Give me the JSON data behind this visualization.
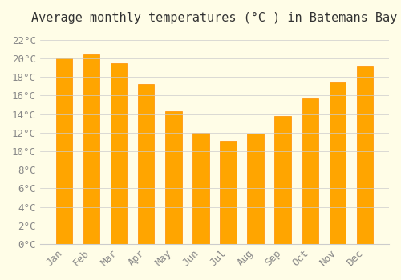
{
  "title": "Average monthly temperatures (°C ) in Batemans Bay",
  "months": [
    "Jan",
    "Feb",
    "Mar",
    "Apr",
    "May",
    "Jun",
    "Jul",
    "Aug",
    "Sep",
    "Oct",
    "Nov",
    "Dec"
  ],
  "values": [
    20.1,
    20.4,
    19.5,
    17.2,
    14.3,
    12.0,
    11.1,
    11.9,
    13.8,
    15.7,
    17.4,
    19.1
  ],
  "bar_color": "#FFA500",
  "bar_edge_color": "#FF8C00",
  "background_color": "#FFFDE7",
  "grid_color": "#CCCCCC",
  "text_color": "#888888",
  "ylim": [
    0,
    23
  ],
  "ytick_step": 2,
  "title_fontsize": 11,
  "tick_fontsize": 9,
  "tick_font": "monospace"
}
